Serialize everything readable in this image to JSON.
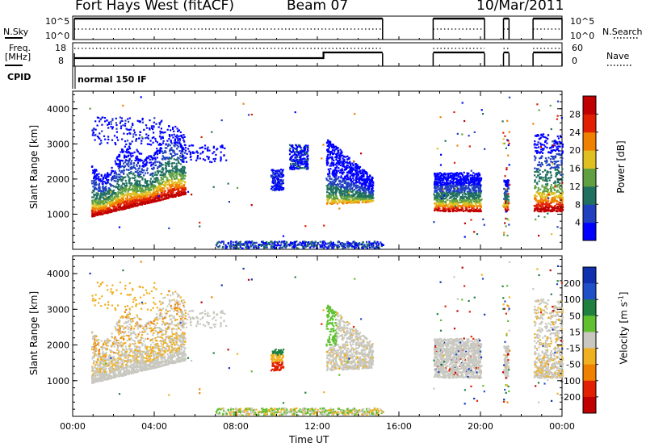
{
  "header": {
    "station": "Fort Hays West (fitACF)",
    "beam": "Beam 07",
    "date": "10/Mar/2011"
  },
  "status_panels": {
    "nsky_label": "N.Sky",
    "nsky_ticks": [
      "10^5",
      "10^0"
    ],
    "nsearch_label": "N.Search",
    "nsearch_ticks": [
      "10^5",
      "10^0"
    ],
    "freq_label_line1": "Freq.",
    "freq_label_line2": "[MHz]",
    "freq_ticks": [
      "18",
      "8"
    ],
    "nave_label": "Nave",
    "nave_ticks": [
      "60",
      "0"
    ],
    "cpid_label": "CPID",
    "cpid_value": "normal 150 IF"
  },
  "chart_data": [
    {
      "type": "heatmap",
      "panel": "power",
      "ylabel": "Slant Range [km]",
      "xlabel": "",
      "y_ticks": [
        1000,
        2000,
        3000,
        4000
      ],
      "ylim": [
        0,
        4500
      ],
      "x_ticks": [
        "00:00",
        "04:00",
        "08:00",
        "12:00",
        "16:00",
        "20:00",
        "00:00"
      ],
      "xlim_hours": [
        0,
        24
      ],
      "colorbar": {
        "label": "Power [dB]",
        "ticks": [
          "4",
          "8",
          "12",
          "16",
          "20",
          "24",
          "28"
        ],
        "colors": [
          "#0000ff",
          "#2040c0",
          "#207060",
          "#60a040",
          "#e0c020",
          "#f08000",
          "#e02000",
          "#c00000"
        ]
      },
      "echo_regions": [
        {
          "t0": 0.9,
          "t1": 5.4,
          "r0": 1100,
          "r1": 3600,
          "note": "main echo band rising with time"
        },
        {
          "t0": 9.6,
          "t1": 10.3,
          "r0": 1700,
          "r1": 2300
        },
        {
          "t0": 10.5,
          "t1": 11.4,
          "r0": 2200,
          "r1": 3000
        },
        {
          "t0": 12.4,
          "t1": 14.7,
          "r0": 1200,
          "r1": 3200
        },
        {
          "t0": 17.7,
          "t1": 20.0,
          "r0": 1100,
          "r1": 2200
        },
        {
          "t0": 21.1,
          "t1": 21.4,
          "r0": 1100,
          "r1": 2000
        },
        {
          "t0": 22.6,
          "t1": 24.0,
          "r0": 1100,
          "r1": 3400
        }
      ]
    },
    {
      "type": "heatmap",
      "panel": "velocity",
      "ylabel": "Slant Range [km]",
      "xlabel": "Time UT",
      "y_ticks": [
        1000,
        2000,
        3000,
        4000
      ],
      "ylim": [
        0,
        4500
      ],
      "x_ticks": [
        "00:00",
        "04:00",
        "08:00",
        "12:00",
        "16:00",
        "20:00",
        "00:00"
      ],
      "xlim_hours": [
        0,
        24
      ],
      "colorbar": {
        "label": "Velocity [m s",
        "label_sup": "-1",
        "label_end": "]",
        "ticks": [
          "200",
          "100",
          "50",
          "15",
          "-15",
          "-50",
          "-100",
          "-200"
        ],
        "colors": [
          "#1030b0",
          "#2050c8",
          "#208040",
          "#60c030",
          "#c8c8c0",
          "#f0b020",
          "#f08000",
          "#e02000",
          "#c00000"
        ]
      }
    }
  ]
}
